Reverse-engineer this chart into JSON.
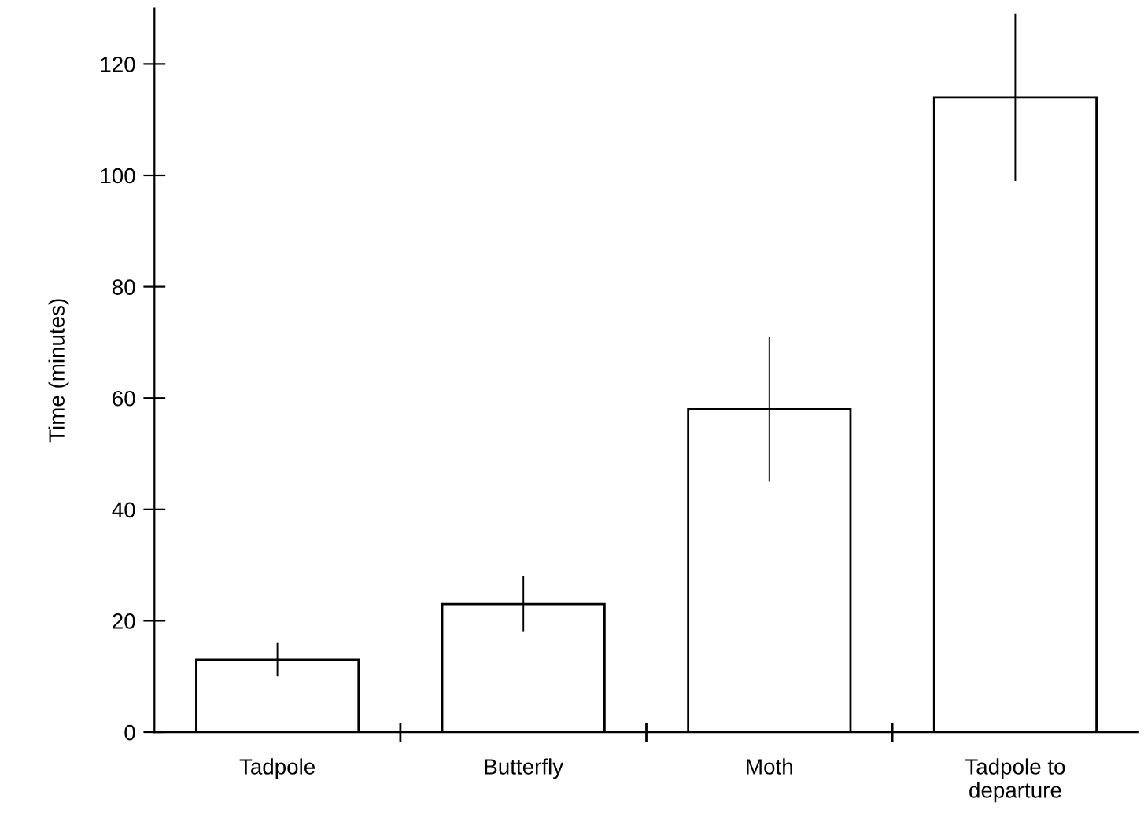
{
  "chart_data": {
    "type": "bar",
    "ylabel": "Time (minutes)",
    "categories": [
      "Tadpole",
      "Butterfly",
      "Moth",
      "Tadpole to\ndeparture"
    ],
    "values": [
      13,
      23,
      58,
      114
    ],
    "errors": [
      3,
      5,
      13,
      15
    ],
    "color": "#ffffff",
    "ylim": [
      0,
      130
    ],
    "yticks": [
      0,
      20,
      40,
      60,
      80,
      100,
      120
    ],
    "grid": false
  }
}
